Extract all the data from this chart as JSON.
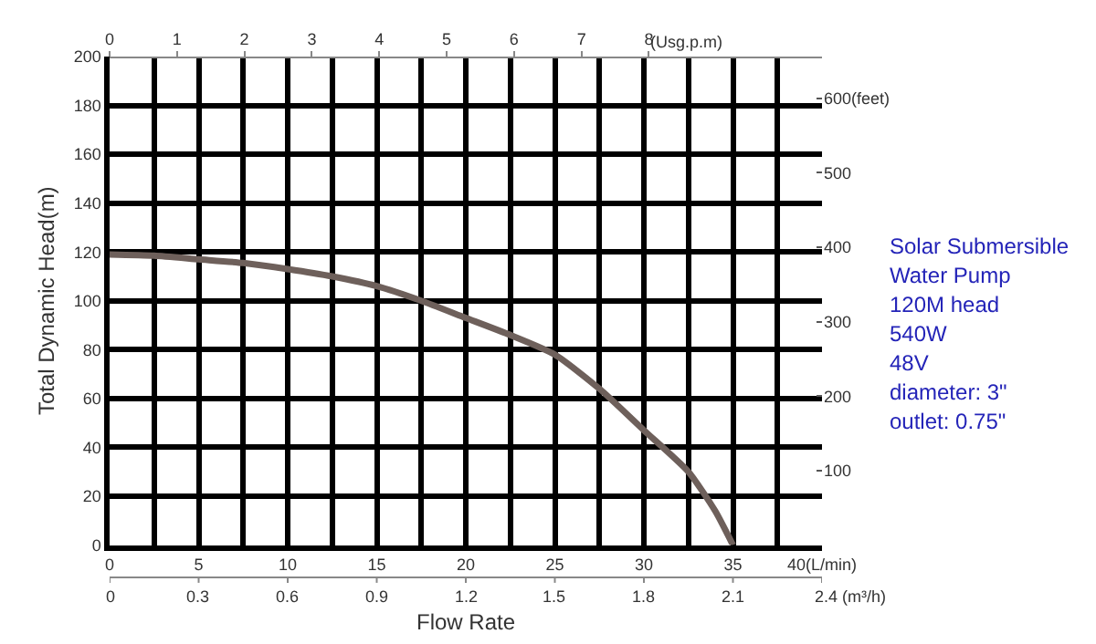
{
  "chart_data": {
    "type": "line",
    "xlabel": "Flow Rate",
    "ylabel": "Total Dynamic Head(m)",
    "x2label": "(Usg.p.m)",
    "xlim": [
      0,
      40
    ],
    "xticks": [
      0,
      {
        "value": 2.5,
        "label": null
      },
      5,
      {
        "value": 7.5,
        "label": null
      },
      10,
      {
        "value": 12.5,
        "label": null
      },
      15,
      {
        "value": 17.5,
        "label": null
      },
      20,
      {
        "value": 22.5,
        "label": null
      },
      25,
      {
        "value": 27.5,
        "label": null
      },
      30,
      {
        "value": 32.5,
        "label": null
      },
      35,
      {
        "value": 37.5,
        "label": null
      },
      {
        "value": 40,
        "label": "40(L/min)"
      }
    ],
    "x2lim": [
      0,
      10.568
    ],
    "x2ticks": [
      0,
      1,
      2,
      3,
      4,
      5,
      6,
      7,
      8
    ],
    "ylim": [
      0,
      200
    ],
    "yticks": [
      0,
      20,
      40,
      60,
      80,
      100,
      120,
      140,
      160,
      180,
      200
    ],
    "y2lim": [
      0,
      656.17
    ],
    "y2ticks": [
      100,
      200,
      300,
      400,
      500,
      {
        "value": 600,
        "label": "600(feet)"
      }
    ],
    "grid": true,
    "legend": false,
    "marker": "none",
    "line_style": "solid",
    "x": [
      0,
      2.5,
      5,
      7.5,
      10,
      12.5,
      15,
      17.5,
      20,
      22.5,
      25,
      27.5,
      30,
      32.5,
      34,
      35
    ],
    "series": [
      {
        "color": "#6e605b",
        "values": [
          119,
          118.5,
          117,
          115.5,
          113,
          110,
          106,
          100,
          93,
          86,
          78,
          64,
          47,
          30,
          14,
          0
        ]
      }
    ],
    "annotations": [
      "Solar Submersible",
      "Water Pump",
      "120M head",
      "540W",
      "48V",
      "diameter: 3\"",
      "outlet: 0.75\"",
      "0",
      "0.3",
      "0.6",
      "0.9",
      "1.2",
      "1.5",
      "1.8",
      "2.1",
      "2.4 (m³/h)"
    ]
  }
}
